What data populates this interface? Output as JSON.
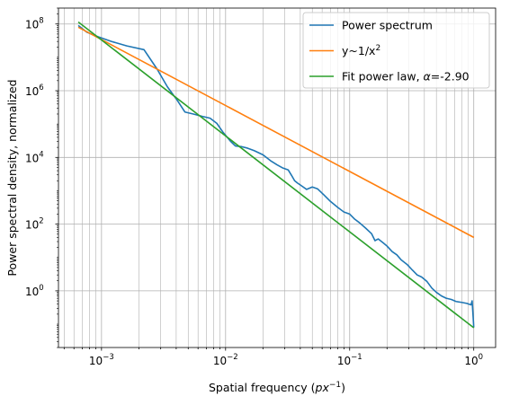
{
  "chart_data": {
    "type": "line",
    "xscale": "log",
    "yscale": "log",
    "xlabel_parts": {
      "text": "Spatial frequency (",
      "math": "px",
      "sup": "−1",
      "close": ")"
    },
    "ylabel": "Power spectral density, normalized",
    "xlim": [
      0.00045,
      1.5
    ],
    "ylim": [
      0.02,
      300000000
    ],
    "x_ticks": [
      {
        "base": "10",
        "exp": "−3",
        "value": 0.001
      },
      {
        "base": "10",
        "exp": "−2",
        "value": 0.01
      },
      {
        "base": "10",
        "exp": "−1",
        "value": 0.1
      },
      {
        "base": "10",
        "exp": "0",
        "value": 1
      }
    ],
    "y_ticks": [
      {
        "base": "10",
        "exp": "0",
        "value": 1
      },
      {
        "base": "10",
        "exp": "2",
        "value": 100
      },
      {
        "base": "10",
        "exp": "4",
        "value": 10000
      },
      {
        "base": "10",
        "exp": "6",
        "value": 1000000
      },
      {
        "base": "10",
        "exp": "8",
        "value": 100000000
      }
    ],
    "grid": "major and minor, both axes",
    "legend_placement": "top-right",
    "series": [
      {
        "name": "Power spectrum",
        "color": "#1f77b4",
        "points": [
          [
            0.00065,
            90000000
          ],
          [
            0.00076,
            57000000
          ],
          [
            0.00093,
            42000000
          ],
          [
            0.0012,
            30000000
          ],
          [
            0.0016,
            22000000
          ],
          [
            0.0022,
            17000000
          ],
          [
            0.0028,
            4500000
          ],
          [
            0.0034,
            1300000
          ],
          [
            0.0041,
            500000
          ],
          [
            0.0047,
            230000
          ],
          [
            0.0055,
            200000
          ],
          [
            0.0065,
            170000
          ],
          [
            0.0075,
            150000
          ],
          [
            0.0085,
            105000
          ],
          [
            0.0095,
            58000
          ],
          [
            0.011,
            30000
          ],
          [
            0.012,
            22000
          ],
          [
            0.0135,
            21000
          ],
          [
            0.015,
            19000
          ],
          [
            0.017,
            16000
          ],
          [
            0.02,
            12000
          ],
          [
            0.023,
            8000
          ],
          [
            0.026,
            6000
          ],
          [
            0.029,
            4800
          ],
          [
            0.032,
            4200
          ],
          [
            0.034,
            2900
          ],
          [
            0.036,
            2000
          ],
          [
            0.038,
            1700
          ],
          [
            0.041,
            1400
          ],
          [
            0.045,
            1100
          ],
          [
            0.05,
            1300
          ],
          [
            0.055,
            1150
          ],
          [
            0.062,
            750
          ],
          [
            0.07,
            480
          ],
          [
            0.08,
            320
          ],
          [
            0.09,
            230
          ],
          [
            0.1,
            200
          ],
          [
            0.11,
            140
          ],
          [
            0.12,
            110
          ],
          [
            0.135,
            75
          ],
          [
            0.15,
            52
          ],
          [
            0.16,
            32
          ],
          [
            0.17,
            36
          ],
          [
            0.185,
            28
          ],
          [
            0.2,
            22
          ],
          [
            0.22,
            15
          ],
          [
            0.24,
            12
          ],
          [
            0.26,
            8.5
          ],
          [
            0.29,
            6.2
          ],
          [
            0.32,
            4.2
          ],
          [
            0.35,
            3.0
          ],
          [
            0.38,
            2.6
          ],
          [
            0.42,
            1.9
          ],
          [
            0.46,
            1.2
          ],
          [
            0.5,
            0.9
          ],
          [
            0.55,
            0.7
          ],
          [
            0.6,
            0.6
          ],
          [
            0.66,
            0.55
          ],
          [
            0.72,
            0.48
          ],
          [
            0.8,
            0.45
          ],
          [
            0.88,
            0.42
          ],
          [
            0.95,
            0.38
          ],
          [
            0.97,
            0.5
          ],
          [
            0.99,
            0.15
          ],
          [
            1.0,
            0.08
          ]
        ]
      },
      {
        "name": "y~1/x",
        "name_sup": "2",
        "color": "#ff7f0e",
        "points": [
          [
            0.00065,
            80000000
          ],
          [
            1.0,
            40
          ]
        ]
      },
      {
        "name": "Fit power law, ",
        "name_math": "α",
        "name_tail": "=-2.90",
        "color": "#2ca02c",
        "points": [
          [
            0.00065,
            115000000
          ],
          [
            1.0,
            0.078
          ]
        ]
      }
    ]
  }
}
